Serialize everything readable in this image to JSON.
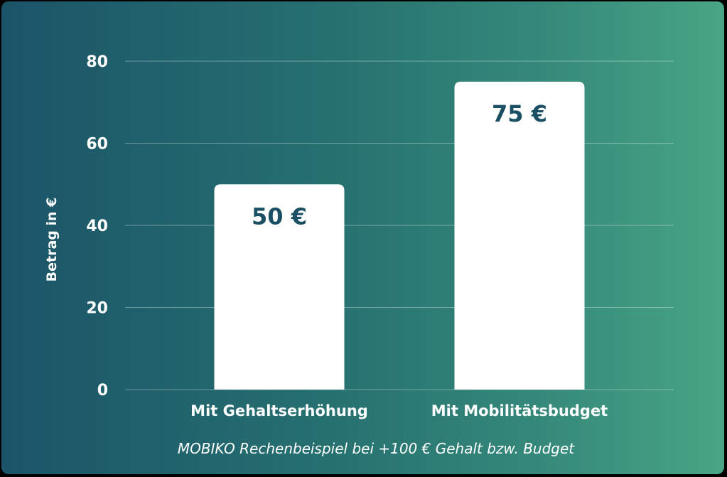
{
  "chart_data": {
    "type": "bar",
    "categories": [
      "Mit Gehaltserhöhung",
      "Mit Mobilitätsbudget"
    ],
    "values": [
      50,
      75
    ],
    "data_labels": [
      "50 €",
      "75 €"
    ],
    "title": "",
    "xlabel": "",
    "ylabel": "Betrag in €",
    "ylim": [
      0,
      80
    ],
    "yticks": [
      0,
      20,
      40,
      60,
      80
    ],
    "caption": "MOBIKO Rechenbeispiel bei +100 € Gehalt bzw. Budget",
    "grid": true,
    "legend": "none",
    "colors": {
      "bar": "#ffffff",
      "bar_label": "#1a4f64",
      "background_start": "#1b5468",
      "background_end": "#48a584",
      "text": "#ffffff"
    }
  }
}
